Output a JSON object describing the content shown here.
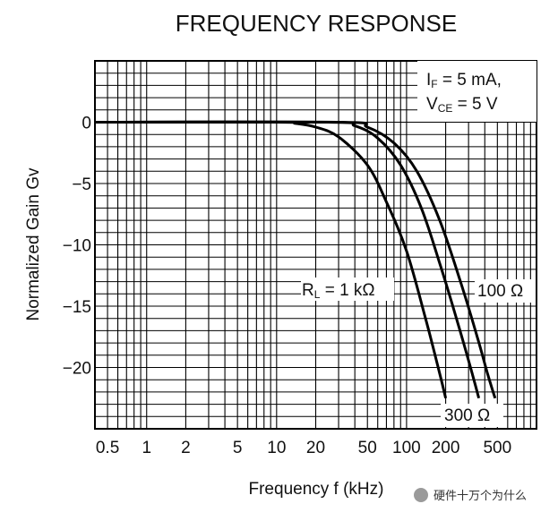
{
  "chart_data": {
    "type": "line",
    "title": "FREQUENCY RESPONSE",
    "xlabel": "Frequency  f (kHz)",
    "ylabel": "Normalized Gain  Gv",
    "x_scale": "log",
    "xlim": [
      0.4,
      1000
    ],
    "ylim": [
      -25,
      5
    ],
    "grid": true,
    "x_ticks": [
      {
        "value": 0.5,
        "label": "0.5"
      },
      {
        "value": 1,
        "label": "1"
      },
      {
        "value": 2,
        "label": "2"
      },
      {
        "value": 5,
        "label": "5"
      },
      {
        "value": 10,
        "label": "10"
      },
      {
        "value": 20,
        "label": "20"
      },
      {
        "value": 50,
        "label": "50"
      },
      {
        "value": 100,
        "label": "100"
      },
      {
        "value": 200,
        "label": "200"
      },
      {
        "value": 500,
        "label": "500"
      }
    ],
    "y_ticks": [
      {
        "value": 0,
        "label": "0"
      },
      {
        "value": -5,
        "label": "−5"
      },
      {
        "value": -10,
        "label": "−10"
      },
      {
        "value": -15,
        "label": "−15"
      },
      {
        "value": -20,
        "label": "−20"
      }
    ],
    "conditions": {
      "line1": {
        "sym": "I",
        "sub": "F",
        "rest": " = 5 mA,"
      },
      "line2": {
        "sym": "V",
        "sub": "CE",
        "rest": " = 5 V"
      }
    },
    "series": [
      {
        "id": "r1k",
        "label": {
          "sym": "R",
          "sub": "L",
          "rest": " = 1 kΩ"
        },
        "x": [
          0.4,
          10,
          14,
          20,
          30,
          50,
          70,
          100,
          140,
          180,
          200
        ],
        "y": [
          0,
          0,
          -0.1,
          -0.4,
          -1.2,
          -3.5,
          -6.5,
          -10.5,
          -16,
          -20.5,
          -22.5
        ]
      },
      {
        "id": "r300",
        "label": {
          "sym": "",
          "sub": "",
          "rest": "300 Ω"
        },
        "x": [
          0.4,
          25,
          40,
          60,
          90,
          130,
          180,
          250,
          320,
          360
        ],
        "y": [
          0,
          0,
          -0.3,
          -1.3,
          -3.5,
          -7,
          -11.5,
          -16.5,
          -20.5,
          -22.5
        ]
      },
      {
        "id": "r100",
        "label": {
          "sym": "",
          "sub": "",
          "rest": "100 Ω"
        },
        "x": [
          0.4,
          30,
          50,
          80,
          120,
          180,
          260,
          350,
          420,
          480
        ],
        "y": [
          0,
          0,
          -0.4,
          -1.7,
          -4,
          -8,
          -13,
          -17.5,
          -20.5,
          -22.5
        ]
      }
    ]
  },
  "watermark": "硬件十万个为什么"
}
